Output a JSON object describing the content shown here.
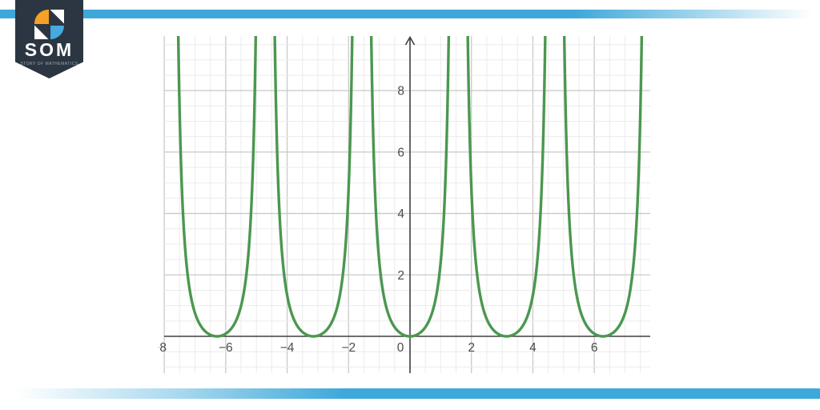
{
  "accent": {
    "bar_blue": "#3ea8da"
  },
  "logo": {
    "name": "SOM",
    "tagline": "STORY OF MATHEMATICS",
    "bg": "#2b3642",
    "orange": "#f5a125",
    "icon_blue": "#45aadd"
  },
  "chart_data": {
    "type": "line",
    "title": "",
    "function": "y = tan²(x)",
    "description": "Periodic curve with minima touching y=0 at multiples of π (0, ±π, ±2π) and vertical asymptotes at odd multiples of π/2 (±π/2, ±3π/2, ±5π/2)",
    "x_range": [
      -8.0,
      7.82
    ],
    "y_range": [
      -1.2,
      9.78
    ],
    "x_ticks": [
      {
        "value": -8,
        "label": "−8",
        "offset_x": -6
      },
      {
        "value": -6,
        "label": "−6",
        "offset_x": 0
      },
      {
        "value": -4,
        "label": "−4",
        "offset_x": 0
      },
      {
        "value": -2,
        "label": "−2",
        "offset_x": 0
      },
      {
        "value": 0,
        "label": "0",
        "offset_x": -12
      },
      {
        "value": 2,
        "label": "2",
        "offset_x": 0
      },
      {
        "value": 4,
        "label": "4",
        "offset_x": 0
      },
      {
        "value": 6,
        "label": "6",
        "offset_x": 0
      }
    ],
    "y_ticks": [
      {
        "value": 2,
        "label": "2"
      },
      {
        "value": 4,
        "label": "4"
      },
      {
        "value": 6,
        "label": "6"
      },
      {
        "value": 8,
        "label": "8"
      }
    ],
    "minor_grid_step": 0.5,
    "major_grid_step": 2,
    "grid": true,
    "legend": "none",
    "colors": {
      "curve": "#4b9750",
      "axis": "#3f3f3f",
      "major_grid": "#c9c9c9",
      "minor_grid": "#ebebeb",
      "tick_label": "#4c4c4c"
    }
  }
}
